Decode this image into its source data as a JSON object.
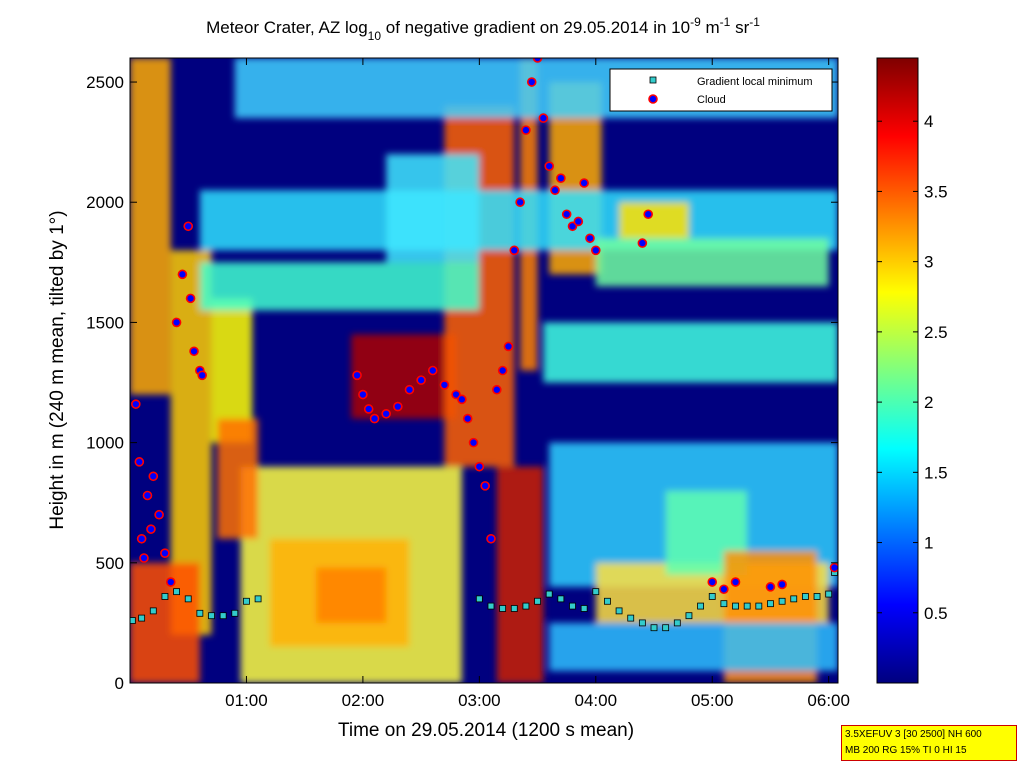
{
  "chart_data": {
    "type": "heatmap",
    "title": {
      "p1": "Meteor Crater, AZ log",
      "sub": "10",
      "p2": " of negative gradient on 29.05.2014 in 10",
      "sup1": "-9",
      "p3": " m",
      "sup2": "-1",
      "p4": " sr",
      "sup3": "-1"
    },
    "xlabel": "Time on 29.05.2014 (1200 s mean)",
    "ylabel": "Height in m (240 m mean, tilted by 1°)",
    "xlim_hours": [
      0,
      6.08
    ],
    "ylim": [
      0,
      2600
    ],
    "x_ticks": [
      {
        "value": 1,
        "label": "01:00"
      },
      {
        "value": 2,
        "label": "02:00"
      },
      {
        "value": 3,
        "label": "03:00"
      },
      {
        "value": 4,
        "label": "04:00"
      },
      {
        "value": 5,
        "label": "05:00"
      },
      {
        "value": 6,
        "label": "06:00"
      }
    ],
    "y_ticks": [
      {
        "value": 0,
        "label": "0"
      },
      {
        "value": 500,
        "label": "500"
      },
      {
        "value": 1000,
        "label": "1000"
      },
      {
        "value": 1500,
        "label": "1500"
      },
      {
        "value": 2000,
        "label": "2000"
      },
      {
        "value": 2500,
        "label": "2500"
      }
    ],
    "colorbar": {
      "range": [
        0,
        4.45
      ],
      "ticks": [
        {
          "value": 0.5,
          "label": "0.5"
        },
        {
          "value": 1,
          "label": "1"
        },
        {
          "value": 1.5,
          "label": "1.5"
        },
        {
          "value": 2,
          "label": "2"
        },
        {
          "value": 2.5,
          "label": "2.5"
        },
        {
          "value": 3,
          "label": "3"
        },
        {
          "value": 3.5,
          "label": "3.5"
        },
        {
          "value": 4,
          "label": "4"
        }
      ]
    },
    "colormap": [
      "#00007f",
      "#0000ff",
      "#007fff",
      "#00ffff",
      "#7fff7f",
      "#ffff00",
      "#ff7f00",
      "#ff0000",
      "#7f0000"
    ],
    "legend": {
      "position": "top-right",
      "entries": [
        {
          "label": "Gradient local minimum",
          "marker": "square",
          "color": "#33cccc"
        },
        {
          "label": "Cloud",
          "marker": "circle",
          "color": "#0000ff",
          "edge": "#ff0000"
        }
      ]
    },
    "gradient_minimum_series": {
      "x": [
        0.02,
        0.1,
        0.2,
        0.3,
        0.4,
        0.5,
        0.6,
        0.7,
        0.8,
        0.9,
        1.0,
        1.1,
        3.0,
        3.1,
        3.2,
        3.3,
        3.4,
        3.5,
        3.6,
        3.7,
        3.8,
        3.9,
        4.0,
        4.1,
        4.2,
        4.3,
        4.4,
        4.5,
        4.6,
        4.7,
        4.8,
        4.9,
        5.0,
        5.1,
        5.2,
        5.3,
        5.4,
        5.5,
        5.6,
        5.7,
        5.8,
        5.9,
        6.0,
        6.05
      ],
      "y": [
        260,
        270,
        300,
        360,
        380,
        350,
        290,
        280,
        280,
        290,
        340,
        350,
        350,
        320,
        310,
        310,
        320,
        340,
        370,
        350,
        320,
        310,
        380,
        340,
        300,
        270,
        250,
        230,
        230,
        250,
        280,
        320,
        360,
        330,
        320,
        320,
        320,
        330,
        340,
        350,
        360,
        360,
        370,
        460
      ]
    },
    "cloud_series": {
      "x": [
        0.05,
        0.08,
        0.1,
        0.12,
        0.15,
        0.18,
        0.2,
        0.25,
        0.3,
        0.35,
        0.4,
        0.45,
        0.5,
        0.52,
        0.55,
        0.6,
        0.62,
        1.95,
        2.0,
        2.05,
        2.1,
        2.2,
        2.3,
        2.4,
        2.5,
        2.6,
        2.7,
        2.8,
        2.85,
        2.9,
        2.95,
        3.0,
        3.05,
        3.1,
        3.15,
        3.2,
        3.25,
        3.3,
        3.35,
        3.4,
        3.45,
        3.5,
        3.55,
        3.6,
        3.65,
        3.7,
        3.75,
        3.8,
        3.85,
        3.9,
        3.95,
        4.0,
        4.4,
        4.45,
        5.0,
        5.1,
        5.2,
        5.5,
        5.6,
        6.05
      ],
      "y": [
        1160,
        920,
        600,
        520,
        780,
        640,
        860,
        700,
        540,
        420,
        1500,
        1700,
        1900,
        1600,
        1380,
        1300,
        1280,
        1280,
        1200,
        1140,
        1100,
        1120,
        1150,
        1220,
        1260,
        1300,
        1240,
        1200,
        1180,
        1100,
        1000,
        900,
        820,
        600,
        1220,
        1300,
        1400,
        1800,
        2000,
        2300,
        2500,
        2600,
        2350,
        2150,
        2050,
        2100,
        1950,
        1900,
        1920,
        2080,
        1850,
        1800,
        1830,
        1950,
        420,
        390,
        420,
        400,
        410,
        480
      ]
    }
  },
  "info_box": {
    "line1": "3.5XEFUV 3 [30 2500] NH 600",
    "line2": "MB 200 RG 15% TI 0 HI 15"
  }
}
